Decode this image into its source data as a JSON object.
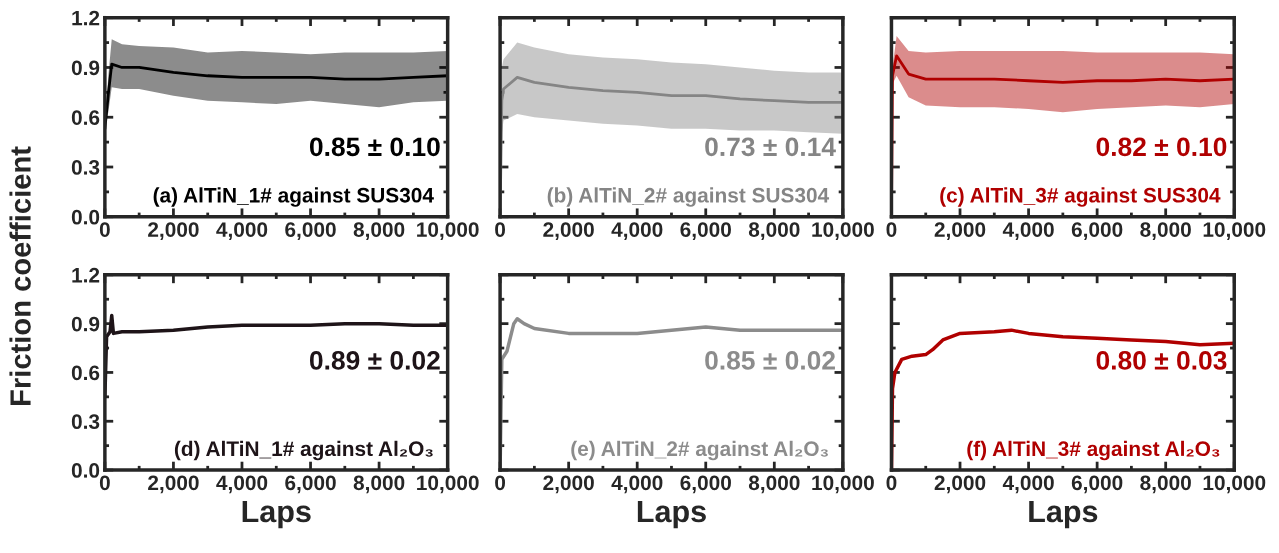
{
  "chart_data": [
    {
      "type": "line",
      "ylabel": "Friction coefficient",
      "xlim": [
        0,
        10000
      ],
      "ylim": [
        0,
        1.2
      ],
      "xticks": [
        0,
        {
          "value": 2000,
          "label": "2,000"
        },
        {
          "value": 4000,
          "label": "4,000"
        },
        {
          "value": 6000,
          "label": "6,000"
        },
        {
          "value": 8000,
          "label": "8,000"
        },
        {
          "value": 10000,
          "label": "10,000"
        }
      ],
      "yticks": [
        {
          "value": 0,
          "label": "0.0"
        },
        {
          "value": 0.3,
          "label": "0.3"
        },
        {
          "value": 0.6,
          "label": "0.6"
        },
        {
          "value": 0.9,
          "label": "0.9"
        },
        {
          "value": 1.2,
          "label": "1.2"
        }
      ],
      "annotations": [
        "0.85 ± 0.10",
        "(a) AlTiN_1# against SUS304"
      ],
      "series": [
        {
          "color": "#000000",
          "x": [
            0,
            100,
            200,
            500,
            1000,
            2000,
            3000,
            4000,
            5000,
            6000,
            7000,
            8000,
            9000,
            10000
          ],
          "values": [
            0.53,
            0.74,
            0.92,
            0.9,
            0.9,
            0.87,
            0.85,
            0.84,
            0.84,
            0.84,
            0.83,
            0.83,
            0.84,
            0.85
          ],
          "lower": [
            0.53,
            0.63,
            0.78,
            0.77,
            0.77,
            0.73,
            0.7,
            0.69,
            0.68,
            0.7,
            0.68,
            0.66,
            0.69,
            0.7
          ],
          "upper": [
            0.53,
            0.85,
            1.07,
            1.04,
            1.03,
            1.02,
            0.99,
            1.0,
            0.99,
            0.98,
            0.99,
            0.99,
            0.99,
            1.0
          ]
        }
      ]
    },
    {
      "type": "line",
      "xlim": [
        0,
        10000
      ],
      "ylim": [
        0,
        1.2
      ],
      "tick_labels": "x",
      "xticks": [
        0,
        {
          "value": 2000,
          "label": "2,000"
        },
        {
          "value": 4000,
          "label": "4,000"
        },
        {
          "value": 6000,
          "label": "6,000"
        },
        {
          "value": 8000,
          "label": "8,000"
        },
        {
          "value": 10000,
          "label": "10,000"
        }
      ],
      "yticks": [
        {
          "value": 0,
          "label": null
        },
        {
          "value": 0.3,
          "label": null
        },
        {
          "value": 0.6,
          "label": null
        },
        {
          "value": 0.9,
          "label": null
        },
        {
          "value": 1.2,
          "label": null
        }
      ],
      "annotations": [
        "0.73 ± 0.14",
        "(b) AlTiN_2# against SUS304"
      ],
      "series": [
        {
          "color": "#858585",
          "x": [
            0,
            50,
            100,
            500,
            1000,
            2000,
            3000,
            4000,
            5000,
            6000,
            7000,
            8000,
            9000,
            10000
          ],
          "values": [
            0.0,
            0.7,
            0.77,
            0.84,
            0.81,
            0.78,
            0.76,
            0.75,
            0.73,
            0.73,
            0.71,
            0.7,
            0.69,
            0.69
          ],
          "lower": [
            0.0,
            0.5,
            0.58,
            0.62,
            0.6,
            0.58,
            0.56,
            0.55,
            0.53,
            0.53,
            0.52,
            0.52,
            0.51,
            0.5
          ],
          "upper": [
            0.0,
            0.9,
            0.95,
            1.05,
            1.02,
            0.98,
            0.96,
            0.95,
            0.93,
            0.92,
            0.9,
            0.88,
            0.87,
            0.87
          ]
        }
      ]
    },
    {
      "type": "line",
      "xlim": [
        0,
        10000
      ],
      "ylim": [
        0,
        1.2
      ],
      "tick_labels": "x",
      "xticks": [
        0,
        {
          "value": 2000,
          "label": "2,000"
        },
        {
          "value": 4000,
          "label": "4,000"
        },
        {
          "value": 6000,
          "label": "6,000"
        },
        {
          "value": 8000,
          "label": "8,000"
        },
        {
          "value": 10000,
          "label": "10,000"
        }
      ],
      "yticks": [
        {
          "value": 0,
          "label": null
        },
        {
          "value": 0.3,
          "label": null
        },
        {
          "value": 0.6,
          "label": null
        },
        {
          "value": 0.9,
          "label": null
        },
        {
          "value": 1.2,
          "label": null
        }
      ],
      "annotations": [
        "0.82 ± 0.10",
        "(c) AlTiN_3# against SUS304"
      ],
      "series": [
        {
          "color": "#b00000",
          "x": [
            0,
            30,
            150,
            500,
            1000,
            2000,
            3000,
            4000,
            5000,
            6000,
            7000,
            8000,
            9000,
            10000
          ],
          "values": [
            0.0,
            0.85,
            0.97,
            0.86,
            0.83,
            0.83,
            0.83,
            0.82,
            0.81,
            0.82,
            0.82,
            0.83,
            0.82,
            0.83
          ],
          "lower": [
            0.0,
            0.8,
            0.85,
            0.72,
            0.67,
            0.66,
            0.66,
            0.65,
            0.63,
            0.65,
            0.66,
            0.67,
            0.66,
            0.68
          ],
          "upper": [
            0.0,
            0.9,
            1.09,
            1.0,
            0.99,
            1.0,
            1.0,
            1.0,
            1.0,
            0.99,
            0.99,
            0.99,
            0.99,
            0.98
          ]
        }
      ]
    },
    {
      "type": "line",
      "xlabel": "Laps",
      "xlim": [
        0,
        10000
      ],
      "ylim": [
        0,
        1.2
      ],
      "xticks": [
        0,
        {
          "value": 2000,
          "label": "2,000"
        },
        {
          "value": 4000,
          "label": "4,000"
        },
        {
          "value": 6000,
          "label": "6,000"
        },
        {
          "value": 8000,
          "label": "8,000"
        },
        {
          "value": 10000,
          "label": "10,000"
        }
      ],
      "yticks": [
        {
          "value": 0,
          "label": "0.0"
        },
        {
          "value": 0.3,
          "label": "0.3"
        },
        {
          "value": 0.6,
          "label": "0.6"
        },
        {
          "value": 0.9,
          "label": "0.9"
        },
        {
          "value": 1.2,
          "label": "1.2"
        }
      ],
      "annotations": [
        "0.89 ± 0.02",
        "(d) AlTiN_1# against Al₂O₃"
      ],
      "series": [
        {
          "color": "#1e1418",
          "x": [
            0,
            50,
            150,
            200,
            250,
            500,
            1000,
            2000,
            3000,
            4000,
            5000,
            6000,
            7000,
            8000,
            9000,
            10000
          ],
          "values": [
            0.45,
            0.82,
            0.85,
            0.95,
            0.84,
            0.85,
            0.85,
            0.86,
            0.88,
            0.89,
            0.89,
            0.89,
            0.9,
            0.9,
            0.89,
            0.89
          ]
        }
      ]
    },
    {
      "type": "line",
      "xlabel": "Laps",
      "xlim": [
        0,
        10000
      ],
      "ylim": [
        0,
        1.2
      ],
      "tick_labels": "x",
      "xticks": [
        0,
        {
          "value": 2000,
          "label": "2,000"
        },
        {
          "value": 4000,
          "label": "4,000"
        },
        {
          "value": 6000,
          "label": "6,000"
        },
        {
          "value": 8000,
          "label": "8,000"
        },
        {
          "value": 10000,
          "label": "10,000"
        }
      ],
      "yticks": [
        {
          "value": 0,
          "label": null
        },
        {
          "value": 0.3,
          "label": null
        },
        {
          "value": 0.6,
          "label": null
        },
        {
          "value": 0.9,
          "label": null
        },
        {
          "value": 1.2,
          "label": null
        }
      ],
      "annotations": [
        "0.85 ± 0.02",
        "(e) AlTiN_2# against Al₂O₃"
      ],
      "series": [
        {
          "color": "#8c8c8c",
          "x": [
            0,
            50,
            200,
            400,
            500,
            700,
            1000,
            2000,
            3000,
            4000,
            5000,
            6000,
            7000,
            8000,
            9000,
            10000
          ],
          "values": [
            0.0,
            0.68,
            0.73,
            0.9,
            0.93,
            0.9,
            0.87,
            0.84,
            0.84,
            0.84,
            0.86,
            0.88,
            0.86,
            0.86,
            0.86,
            0.86
          ]
        }
      ]
    },
    {
      "type": "line",
      "xlabel": "Laps",
      "xlim": [
        0,
        10000
      ],
      "ylim": [
        0,
        1.2
      ],
      "tick_labels": "x",
      "xticks": [
        0,
        {
          "value": 2000,
          "label": "2,000"
        },
        {
          "value": 4000,
          "label": "4,000"
        },
        {
          "value": 6000,
          "label": "6,000"
        },
        {
          "value": 8000,
          "label": "8,000"
        },
        {
          "value": 10000,
          "label": "10,000"
        }
      ],
      "yticks": [
        {
          "value": 0,
          "label": null
        },
        {
          "value": 0.3,
          "label": null
        },
        {
          "value": 0.6,
          "label": null
        },
        {
          "value": 0.9,
          "label": null
        },
        {
          "value": 1.2,
          "label": null
        }
      ],
      "annotations": [
        "0.80 ± 0.03",
        "(f) AlTiN_3# against Al₂O₃"
      ],
      "series": [
        {
          "color": "#b00000",
          "x": [
            0,
            30,
            100,
            300,
            600,
            1000,
            1200,
            1500,
            2000,
            3000,
            3500,
            4000,
            5000,
            6000,
            7000,
            8000,
            9000,
            10000
          ],
          "values": [
            0.0,
            0.5,
            0.6,
            0.68,
            0.7,
            0.71,
            0.74,
            0.8,
            0.84,
            0.85,
            0.86,
            0.84,
            0.82,
            0.81,
            0.8,
            0.79,
            0.77,
            0.78
          ]
        }
      ]
    }
  ]
}
